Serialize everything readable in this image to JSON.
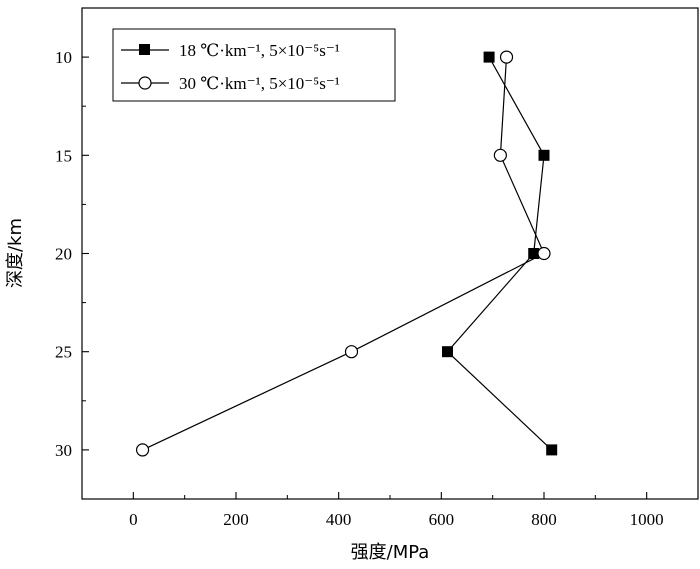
{
  "chart_data": {
    "type": "line",
    "orientation": "depth-profile",
    "xlabel": "强度/MPa",
    "ylabel": "深度/km",
    "xlim": [
      -100,
      1100
    ],
    "ylim": [
      32.5,
      7.5
    ],
    "y_inverted": true,
    "x_ticks": [
      0,
      200,
      400,
      600,
      800,
      1000
    ],
    "y_ticks": [
      10,
      15,
      20,
      25,
      30
    ],
    "grid": false,
    "legend_position": "top-left",
    "series": [
      {
        "name": "18 ℃·km⁻¹, 5×10⁻⁵s⁻¹",
        "marker": "filled-square",
        "color": "#000000",
        "x": [
          693,
          800,
          780,
          612,
          815
        ],
        "y": [
          10,
          15,
          20,
          25,
          30
        ]
      },
      {
        "name": "30 ℃·km⁻¹, 5×10⁻⁵s⁻¹",
        "marker": "open-circle",
        "color": "#000000",
        "x": [
          727,
          715,
          800,
          425,
          18
        ],
        "y": [
          10,
          15,
          20,
          25,
          30
        ]
      }
    ]
  }
}
